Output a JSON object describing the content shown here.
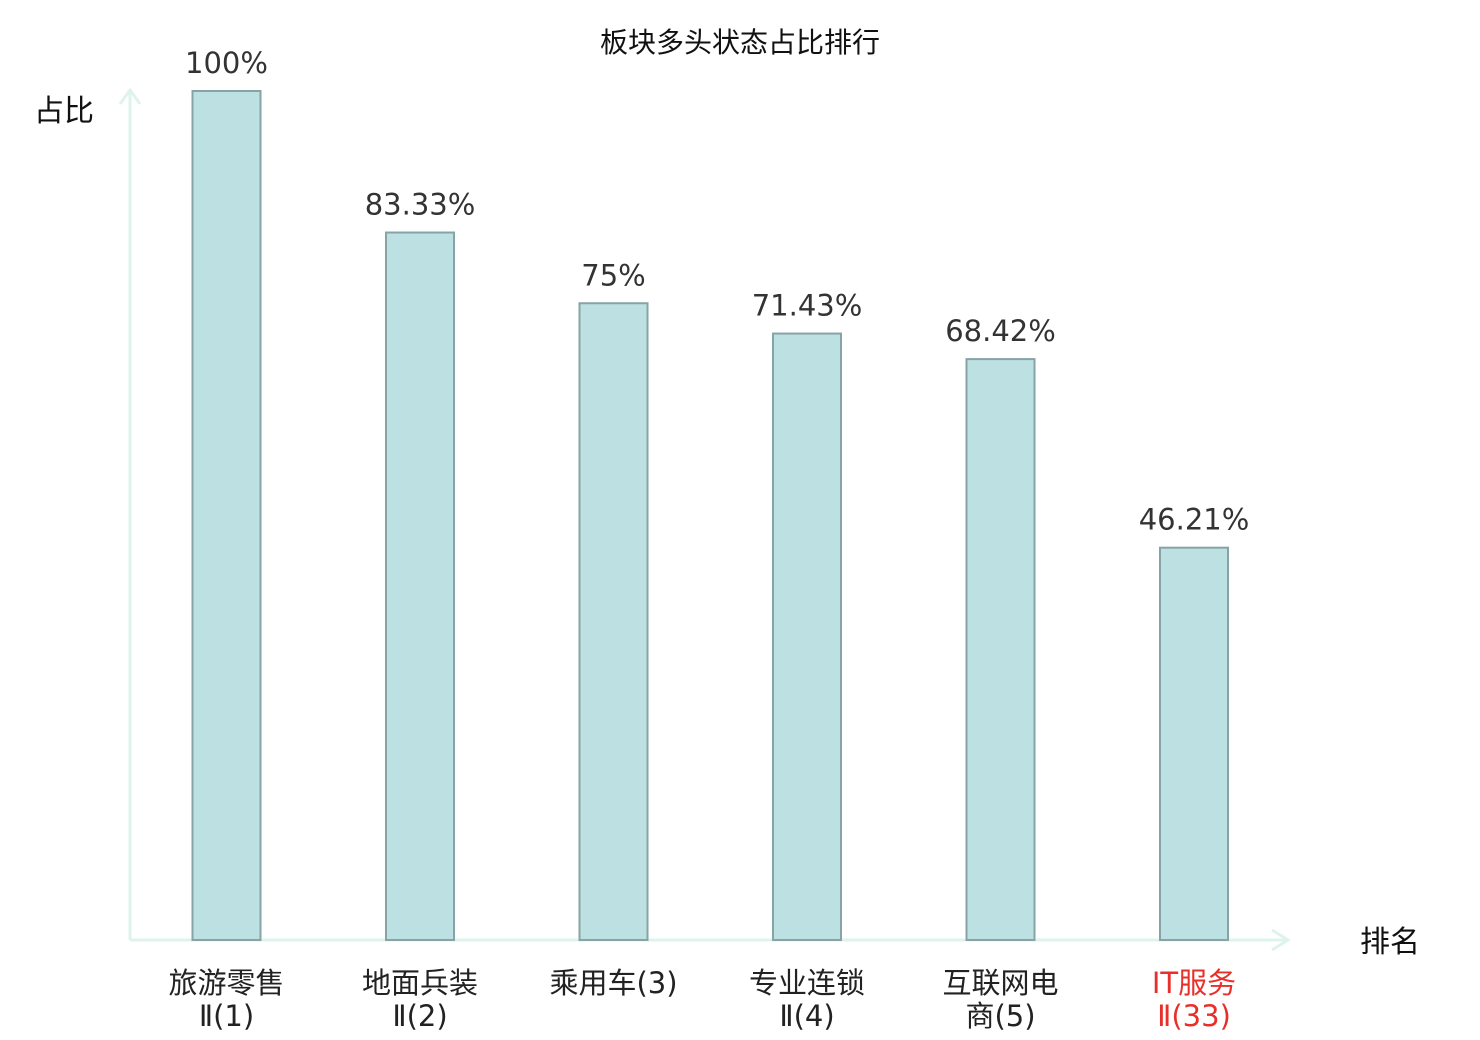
{
  "chart_data": {
    "type": "bar",
    "title": "板块多头状态占比排行",
    "ylabel": "占比",
    "xlabel": "排名",
    "ylim": [
      0,
      100
    ],
    "grid": false,
    "categories": [
      {
        "lines": [
          "旅游零售",
          "Ⅱ(1)"
        ],
        "highlight": false
      },
      {
        "lines": [
          "地面兵装",
          "Ⅱ(2)"
        ],
        "highlight": false
      },
      {
        "lines": [
          "乘用车(3)"
        ],
        "highlight": false
      },
      {
        "lines": [
          "专业连锁",
          "Ⅱ(4)"
        ],
        "highlight": false
      },
      {
        "lines": [
          "互联网电",
          "商(5)"
        ],
        "highlight": false
      },
      {
        "lines": [
          "IT服务",
          "Ⅱ(33)"
        ],
        "highlight": true
      }
    ],
    "values": [
      100,
      83.33,
      75,
      71.43,
      68.42,
      46.21
    ],
    "value_labels": [
      "100%",
      "83.33%",
      "75%",
      "71.43%",
      "68.42%",
      "46.21%"
    ]
  },
  "colors": {
    "bar_fill": "#bde0e3",
    "bar_stroke": "#86a3a6",
    "axis": "#dff3ee",
    "label_default": "#222222",
    "label_highlight": "#e8302a"
  }
}
